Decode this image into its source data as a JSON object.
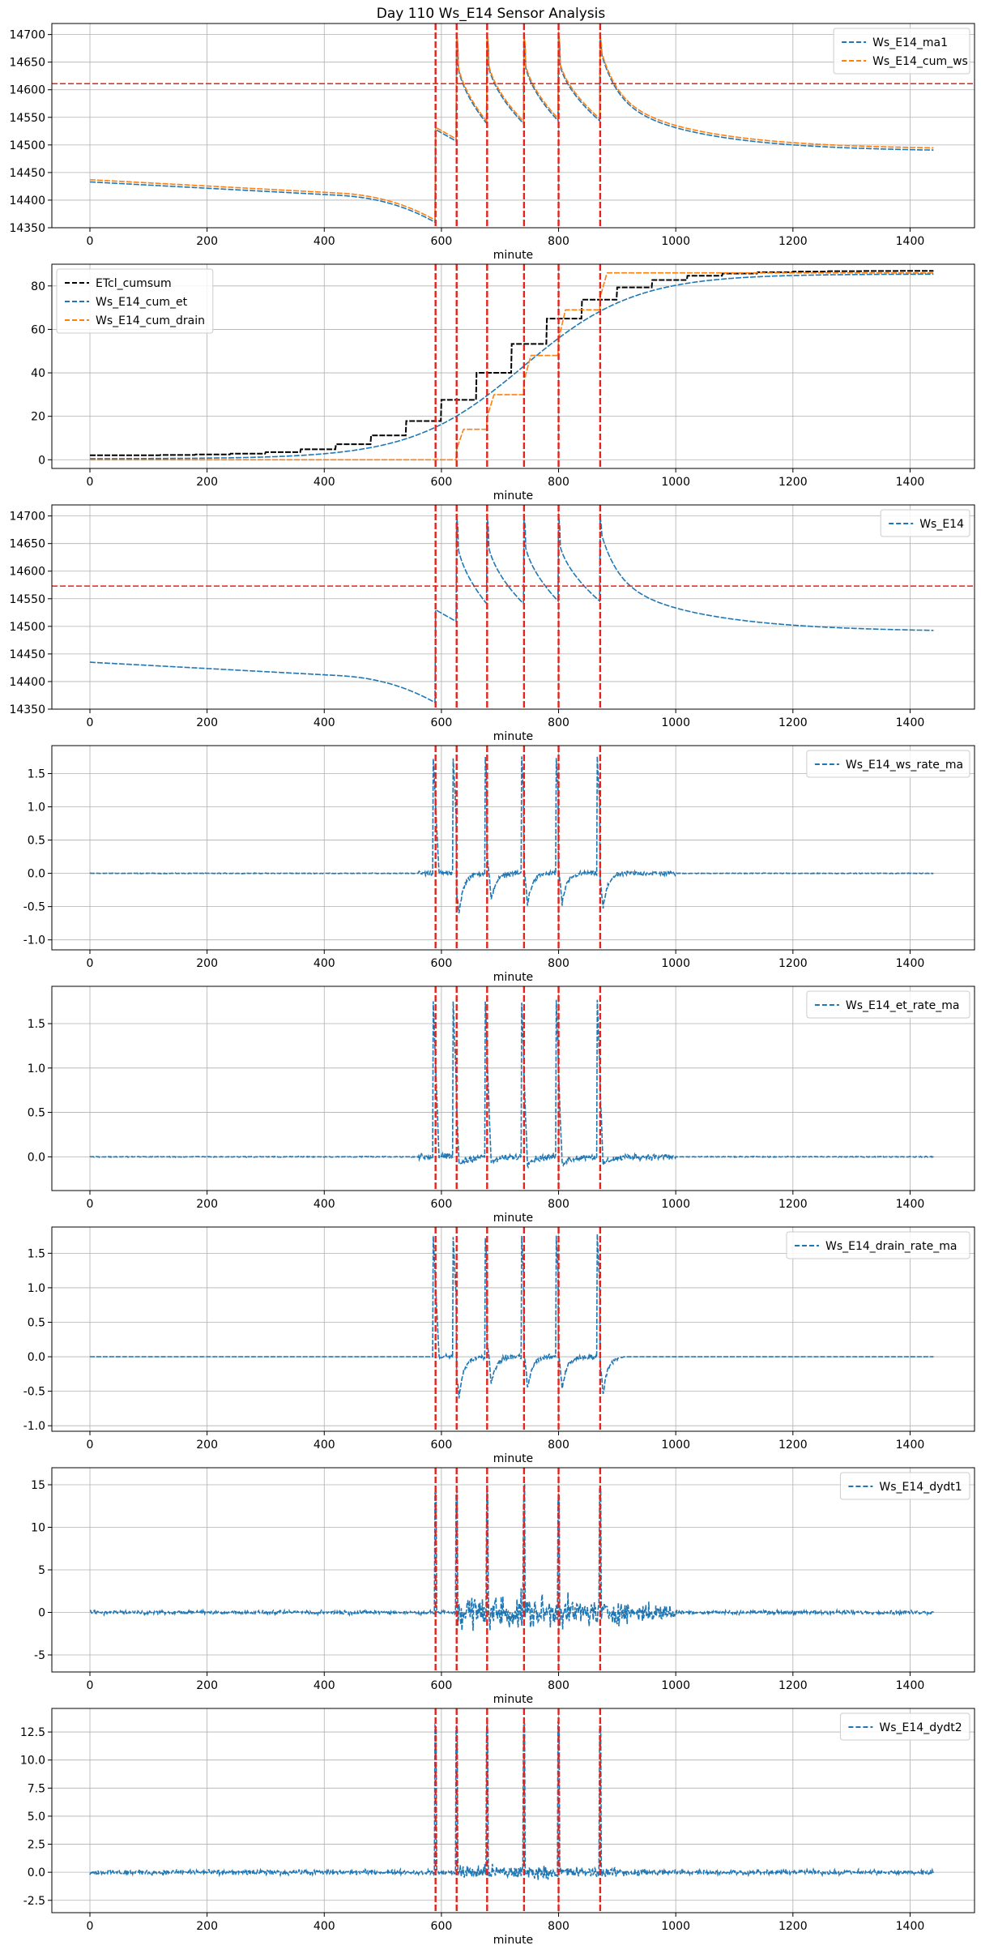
{
  "figure": {
    "title": "Day 110 Ws_E14 Sensor Analysis"
  },
  "vlines": [
    590,
    626,
    678,
    741,
    800,
    871
  ],
  "chart_data": [
    {
      "type": "line",
      "xlabel": "minute",
      "xlim": [
        -65,
        1510
      ],
      "ylim": [
        14350,
        14720
      ],
      "yticks": [
        14350,
        14400,
        14450,
        14500,
        14550,
        14600,
        14650,
        14700
      ],
      "yticklabels": [
        "14350",
        "14400",
        "14450",
        "14500",
        "14550",
        "14600",
        "14650",
        "14700"
      ],
      "xticks": [
        0,
        200,
        400,
        600,
        800,
        1000,
        1200,
        1400
      ],
      "xticklabels": [
        "0",
        "200",
        "400",
        "600",
        "800",
        "1000",
        "1200",
        "1400"
      ],
      "hline": 14611,
      "legend": "top-right",
      "series": [
        {
          "name": "Ws_E14_ma1",
          "color": "#1f77b4",
          "style": "dashed",
          "model": "ws",
          "offset": -2
        },
        {
          "name": "Ws_E14_cum_ws",
          "color": "#ff7f0e",
          "style": "dashed",
          "model": "ws",
          "offset": 2
        }
      ]
    },
    {
      "type": "line",
      "xlabel": "minute",
      "xlim": [
        -65,
        1510
      ],
      "ylim": [
        -4,
        90
      ],
      "yticks": [
        0,
        20,
        40,
        60,
        80
      ],
      "yticklabels": [
        "0",
        "20",
        "40",
        "60",
        "80"
      ],
      "xticks": [
        0,
        200,
        400,
        600,
        800,
        1000,
        1200,
        1400
      ],
      "xticklabels": [
        "0",
        "200",
        "400",
        "600",
        "800",
        "1000",
        "1200",
        "1400"
      ],
      "legend": "top-left",
      "series": [
        {
          "name": "ETcl_cumsum",
          "color": "#000000",
          "style": "dashed",
          "model": "etcl"
        },
        {
          "name": "Ws_E14_cum_et",
          "color": "#1f77b4",
          "style": "dashed",
          "model": "cumet"
        },
        {
          "name": "Ws_E14_cum_drain",
          "color": "#ff7f0e",
          "style": "dashed",
          "model": "drain"
        }
      ]
    },
    {
      "type": "line",
      "xlabel": "minute",
      "xlim": [
        -65,
        1510
      ],
      "ylim": [
        14350,
        14720
      ],
      "yticks": [
        14350,
        14400,
        14450,
        14500,
        14550,
        14600,
        14650,
        14700
      ],
      "yticklabels": [
        "14350",
        "14400",
        "14450",
        "14500",
        "14550",
        "14600",
        "14650",
        "14700"
      ],
      "xticks": [
        0,
        200,
        400,
        600,
        800,
        1000,
        1200,
        1400
      ],
      "xticklabels": [
        "0",
        "200",
        "400",
        "600",
        "800",
        "1000",
        "1200",
        "1400"
      ],
      "hline": 14573,
      "legend": "top-right",
      "series": [
        {
          "name": "Ws_E14",
          "color": "#1f77b4",
          "style": "dashed",
          "model": "ws",
          "offset": 0
        }
      ]
    },
    {
      "type": "line",
      "xlabel": "minute",
      "xlim": [
        -65,
        1510
      ],
      "ylim": [
        -1.15,
        1.92
      ],
      "yticks": [
        -1.0,
        -0.5,
        0.0,
        0.5,
        1.0,
        1.5
      ],
      "yticklabels": [
        "-1.0",
        "-0.5",
        "0.0",
        "0.5",
        "1.0",
        "1.5"
      ],
      "xticks": [
        0,
        200,
        400,
        600,
        800,
        1000,
        1200,
        1400
      ],
      "xticklabels": [
        "0",
        "200",
        "400",
        "600",
        "800",
        "1000",
        "1200",
        "1400"
      ],
      "legend": "top-right",
      "series": [
        {
          "name": "Ws_E14_ws_rate_ma",
          "color": "#1f77b4",
          "style": "dashed",
          "model": "rate_ws"
        }
      ]
    },
    {
      "type": "line",
      "xlabel": "minute",
      "xlim": [
        -65,
        1510
      ],
      "ylim": [
        -0.38,
        1.92
      ],
      "yticks": [
        0.0,
        0.5,
        1.0,
        1.5
      ],
      "yticklabels": [
        "0.0",
        "0.5",
        "1.0",
        "1.5"
      ],
      "xticks": [
        0,
        200,
        400,
        600,
        800,
        1000,
        1200,
        1400
      ],
      "xticklabels": [
        "0",
        "200",
        "400",
        "600",
        "800",
        "1000",
        "1200",
        "1400"
      ],
      "legend": "top-right",
      "series": [
        {
          "name": "Ws_E14_et_rate_ma",
          "color": "#1f77b4",
          "style": "dashed",
          "model": "rate_et"
        }
      ]
    },
    {
      "type": "line",
      "xlabel": "minute",
      "xlim": [
        -65,
        1510
      ],
      "ylim": [
        -1.08,
        1.88
      ],
      "yticks": [
        -1.0,
        -0.5,
        0.0,
        0.5,
        1.0,
        1.5
      ],
      "yticklabels": [
        "-1.0",
        "-0.5",
        "0.0",
        "0.5",
        "1.0",
        "1.5"
      ],
      "xticks": [
        0,
        200,
        400,
        600,
        800,
        1000,
        1200,
        1400
      ],
      "xticklabels": [
        "0",
        "200",
        "400",
        "600",
        "800",
        "1000",
        "1200",
        "1400"
      ],
      "legend": "top-right",
      "series": [
        {
          "name": "Ws_E14_drain_rate_ma",
          "color": "#1f77b4",
          "style": "dashed",
          "model": "rate_drain"
        }
      ]
    },
    {
      "type": "line",
      "xlabel": "minute",
      "xlim": [
        -65,
        1510
      ],
      "ylim": [
        -7,
        17
      ],
      "yticks": [
        -5,
        0,
        5,
        10,
        15
      ],
      "yticklabels": [
        "-5",
        "0",
        "5",
        "10",
        "15"
      ],
      "xticks": [
        0,
        200,
        400,
        600,
        800,
        1000,
        1200,
        1400
      ],
      "xticklabels": [
        "0",
        "200",
        "400",
        "600",
        "800",
        "1000",
        "1200",
        "1400"
      ],
      "legend": "top-right",
      "series": [
        {
          "name": "Ws_E14_dydt1",
          "color": "#1f77b4",
          "style": "dashed",
          "model": "dydt1"
        }
      ]
    },
    {
      "type": "line",
      "xlabel": "minute",
      "xlim": [
        -65,
        1510
      ],
      "ylim": [
        -3.6,
        14.6
      ],
      "yticks": [
        -2.5,
        0.0,
        2.5,
        5.0,
        7.5,
        10.0,
        12.5
      ],
      "yticklabels": [
        "-2.5",
        "0.0",
        "2.5",
        "5.0",
        "7.5",
        "10.0",
        "12.5"
      ],
      "xticks": [
        0,
        200,
        400,
        600,
        800,
        1000,
        1200,
        1400
      ],
      "xticklabels": [
        "0",
        "200",
        "400",
        "600",
        "800",
        "1000",
        "1200",
        "1400"
      ],
      "legend": "top-right",
      "series": [
        {
          "name": "Ws_E14_dydt2",
          "color": "#1f77b4",
          "style": "dashed",
          "model": "dydt2"
        }
      ]
    }
  ]
}
